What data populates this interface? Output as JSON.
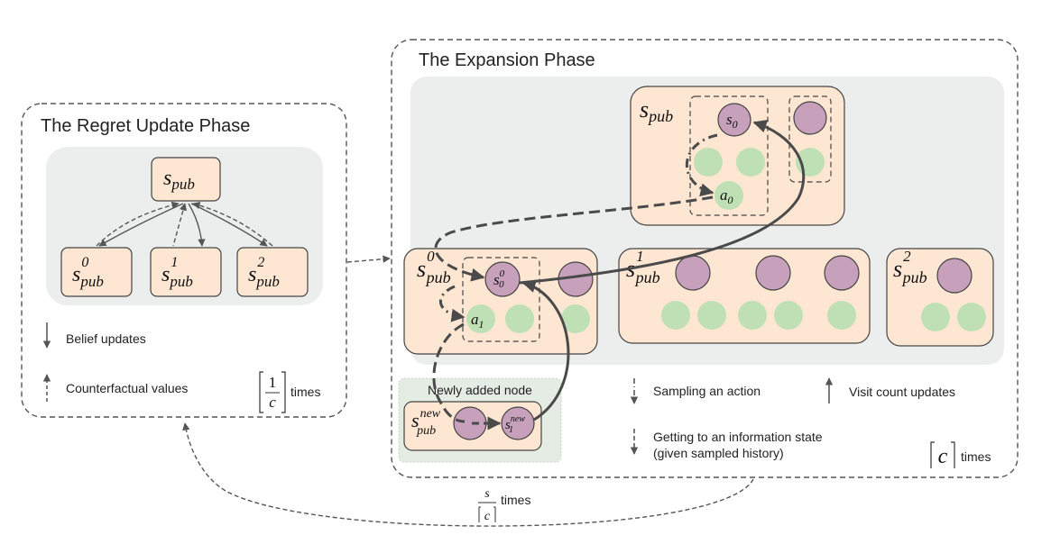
{
  "regret_phase": {
    "title": "The Regret Update Phase",
    "root": {
      "base": "s",
      "sub": "pub"
    },
    "children": [
      {
        "base": "s",
        "sub": "pub",
        "sup": "0"
      },
      {
        "base": "s",
        "sub": "pub",
        "sup": "1"
      },
      {
        "base": "s",
        "sub": "pub",
        "sup": "2"
      }
    ],
    "legend": {
      "belief_updates": "Belief updates",
      "counterfactual_values": "Counterfactual values"
    },
    "repeat": {
      "numerator": "1",
      "denominator": "c",
      "unit": "times"
    }
  },
  "expansion_phase": {
    "title": "The Expansion Phase",
    "top_node": {
      "base": "s",
      "sub": "pub",
      "state": "s",
      "state_sub": "0",
      "action": "a",
      "action_sub": "0"
    },
    "children": [
      {
        "base": "s",
        "sub": "pub",
        "sup": "0",
        "state": "s",
        "state_sub": "0",
        "state_sup": "0",
        "action": "a",
        "action_sub": "1"
      },
      {
        "base": "s",
        "sub": "pub",
        "sup": "1"
      },
      {
        "base": "s",
        "sub": "pub",
        "sup": "2"
      }
    ],
    "new_node": {
      "caption": "Newly added node",
      "base": "s",
      "sub": "pub",
      "sup": "new",
      "state": "s",
      "state_sub": "1",
      "state_sup": "new"
    },
    "legend": {
      "sampling_action": "Sampling an action",
      "visit_count": "Visit count updates",
      "info_state_line1": "Getting to an information state",
      "info_state_line2": "(given sampled history)"
    },
    "repeat": {
      "symbol": "c",
      "unit": "times"
    }
  },
  "outer_loop": {
    "numerator": "s",
    "denominator": "c",
    "unit": "times"
  },
  "colors": {
    "node_fill": "#fde6d2",
    "panel_gray": "#eceeed",
    "new_panel": "#e4ece4",
    "purple": "#c7a1bb",
    "green": "#bfe0b5",
    "line": "#555555"
  }
}
